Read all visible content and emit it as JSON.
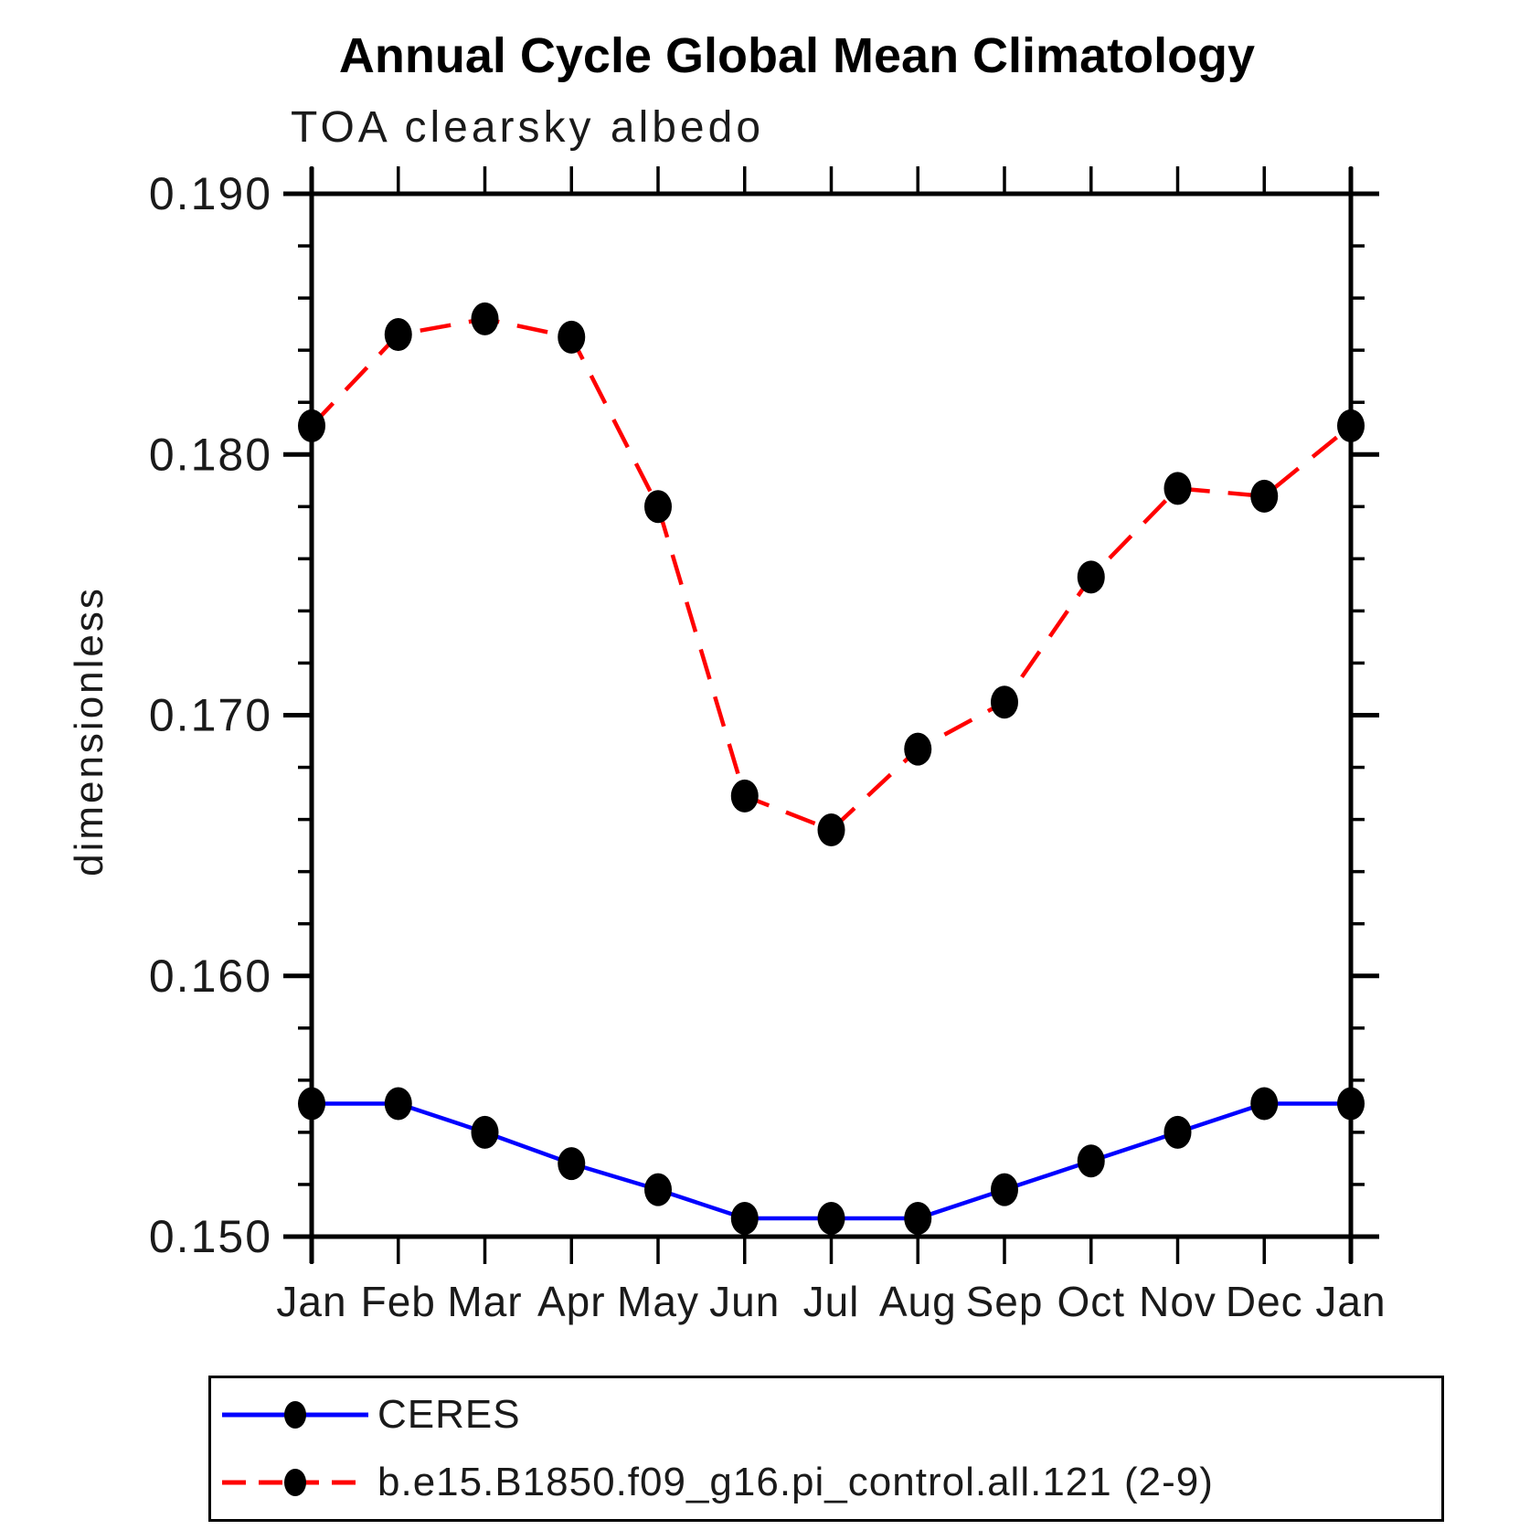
{
  "chart_data": {
    "type": "line",
    "title": "Annual Cycle Global Mean Climatology",
    "subtitle": "TOA clearsky albedo",
    "ylabel": "dimensionless",
    "xlabel": "",
    "categories": [
      "Jan",
      "Feb",
      "Mar",
      "Apr",
      "May",
      "Jun",
      "Jul",
      "Aug",
      "Sep",
      "Oct",
      "Nov",
      "Dec",
      "Jan"
    ],
    "ylim": [
      0.15,
      0.19
    ],
    "ytick_major_values": [
      0.15,
      0.16,
      0.17,
      0.18,
      0.19
    ],
    "ytick_major_labels": [
      "0.150",
      "0.160",
      "0.170",
      "0.180",
      "0.190"
    ],
    "ytick_minor_step": 0.002,
    "grid": false,
    "legend_position": "bottom",
    "background_color": "#ffffff",
    "axis_color": "#000000",
    "marker_color": "#000000",
    "series": [
      {
        "name": "CERES",
        "color": "#0000ff",
        "line_style": "solid",
        "marker": "filled-circle",
        "values": [
          0.1551,
          0.1551,
          0.154,
          0.1528,
          0.1518,
          0.1507,
          0.1507,
          0.1507,
          0.1518,
          0.1529,
          0.154,
          0.1551,
          0.1551
        ]
      },
      {
        "name": "b.e15.B1850.f09_g16.pi_control.all.121 (2-9)",
        "color": "#ff0000",
        "line_style": "dashed",
        "marker": "filled-circle",
        "values": [
          0.1811,
          0.1846,
          0.1852,
          0.1845,
          0.178,
          0.1669,
          0.1656,
          0.1687,
          0.1705,
          0.1753,
          0.1787,
          0.1784,
          0.1811
        ]
      }
    ]
  }
}
